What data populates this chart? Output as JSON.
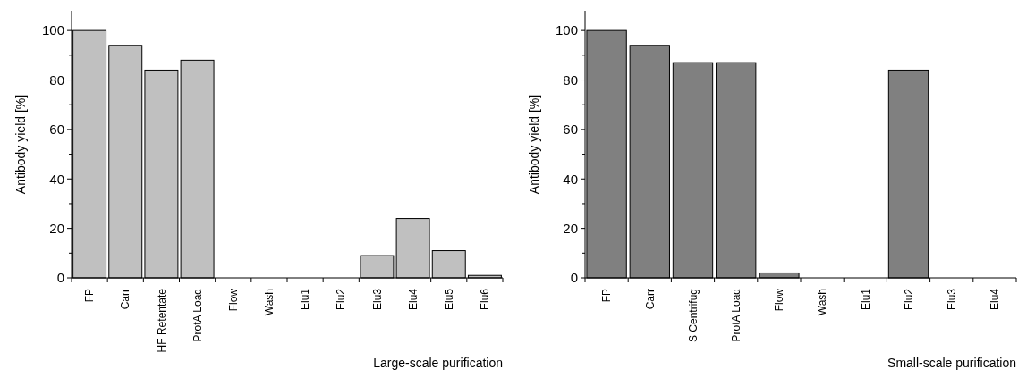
{
  "chart_data": [
    {
      "type": "bar",
      "xlabel": "Large-scale purification",
      "ylabel": "Antibody yield [%]",
      "categories": [
        "FP",
        "Carr",
        "HF Retentate",
        "ProtA Load",
        "Flow",
        "Wash",
        "Elu1",
        "Elu2",
        "Elu3",
        "Elu4",
        "Elu5",
        "Elu6"
      ],
      "values": [
        100,
        94,
        84,
        88,
        0,
        0,
        0,
        0,
        9,
        24,
        11,
        1
      ],
      "color": "#c0c0c0",
      "ylim": [
        0,
        108
      ],
      "yticks": [
        0,
        {
          "value": 10,
          "label": null
        },
        20,
        {
          "value": 30,
          "label": null
        },
        40,
        {
          "value": 50,
          "label": null
        },
        60,
        {
          "value": 70,
          "label": null
        },
        80,
        {
          "value": 90,
          "label": null
        },
        100
      ],
      "grid": false
    },
    {
      "type": "bar",
      "xlabel": "Small-scale purification",
      "ylabel": "Antibody yield [%]",
      "categories": [
        "FP",
        "Carr",
        "S Centrifug",
        "ProtA Load",
        "Flow",
        "Wash",
        "Elu1",
        "Elu2",
        "Elu3",
        "Elu4"
      ],
      "values": [
        100,
        94,
        87,
        87,
        2,
        0,
        0,
        84,
        0,
        0
      ],
      "color": "#808080",
      "ylim": [
        0,
        108
      ],
      "yticks": [
        0,
        {
          "value": 10,
          "label": null
        },
        20,
        {
          "value": 30,
          "label": null
        },
        40,
        {
          "value": 50,
          "label": null
        },
        60,
        {
          "value": 70,
          "label": null
        },
        80,
        {
          "value": 90,
          "label": null
        },
        100
      ],
      "grid": false
    }
  ]
}
